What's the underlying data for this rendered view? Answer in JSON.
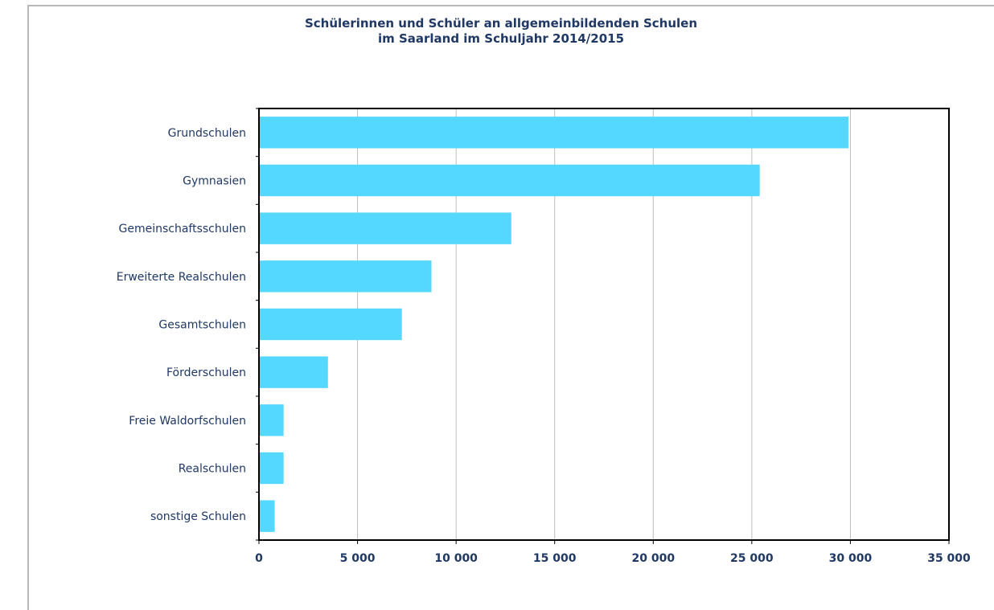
{
  "chart_data": {
    "type": "bar",
    "orientation": "horizontal",
    "title": "Schülerinnen und Schüler an allgemeinbildenden Schulen",
    "subtitle": "im Saarland im Schuljahr 2014/2015",
    "categories": [
      "Grundschulen",
      "Gymnasien",
      "Gemeinschaftsschulen",
      "Erweiterte Realschulen",
      "Gesamtschulen",
      "Förderschulen",
      "Freie Waldorfschulen",
      "Realschulen",
      "sonstige Schulen"
    ],
    "values": [
      29900,
      25400,
      12800,
      8750,
      7250,
      3500,
      1250,
      1250,
      800
    ],
    "xlim": [
      0,
      35000
    ],
    "xticks": [
      0,
      5000,
      10000,
      15000,
      20000,
      25000,
      30000,
      35000
    ],
    "xtick_labels": [
      "0",
      "5 000",
      "10 000",
      "15 000",
      "20 000",
      "25 000",
      "30 000",
      "35 000"
    ],
    "xlabel": "",
    "ylabel": "",
    "grid": "vertical",
    "legend": "none",
    "bar_color": "#55d8ff",
    "text_color": "#1f3864"
  }
}
